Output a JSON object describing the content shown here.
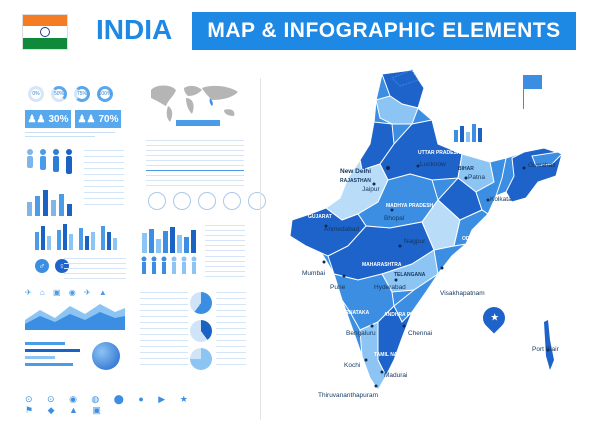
{
  "header": {
    "country": "INDIA",
    "banner": "MAP & INFOGRAPHIC ELEMENTS"
  },
  "infographic": {
    "percents": [
      "0%",
      "50%",
      "75%",
      "100%"
    ],
    "stats": [
      "30%",
      "70%"
    ]
  },
  "map": {
    "cities": [
      {
        "name": "New Delhi"
      },
      {
        "name": "Jaipur"
      },
      {
        "name": "Bhopal"
      },
      {
        "name": "Lucknow"
      },
      {
        "name": "Patna"
      },
      {
        "name": "Kolkata"
      },
      {
        "name": "Mumbai"
      },
      {
        "name": "Hyderabad"
      },
      {
        "name": "Bengaluru"
      },
      {
        "name": "Chennai"
      },
      {
        "name": "Kochi"
      },
      {
        "name": "Madurai"
      },
      {
        "name": "Thiruvananthapuram"
      },
      {
        "name": "Port Blair"
      },
      {
        "name": "Guwahati"
      },
      {
        "name": "Visakhapatnam"
      },
      {
        "name": "Ahmedabad"
      },
      {
        "name": "Nagpur"
      },
      {
        "name": "Pune"
      }
    ],
    "states": [
      "RAJASTHAN",
      "UTTAR PRADESH",
      "MADHYA PRADESH",
      "MAHARASHTRA",
      "GUJARAT",
      "ODISHA",
      "TELANGANA",
      "KARNATAKA",
      "TAMIL NADU",
      "ANDHRA PRADESH",
      "BIHAR"
    ],
    "colors": {
      "dark": "#1e63c9",
      "mid": "#3c8ee2",
      "light": "#8cc4f4",
      "lighter": "#b9dcf9",
      "water": "#ffffff"
    }
  }
}
